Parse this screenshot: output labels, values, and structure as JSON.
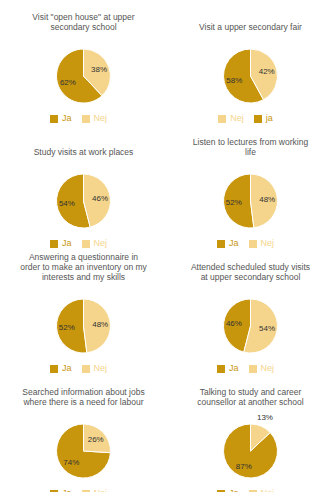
{
  "chart_data": [
    {
      "type": "pie",
      "title": "Visit \"open house\" at upper\nsecondary school",
      "categories": [
        "Ja",
        "Nej"
      ],
      "values": [
        62,
        38
      ],
      "value_labels": [
        "62%",
        "38%"
      ],
      "colors": [
        "#C8960C",
        "#F5D58C"
      ],
      "data_labels": true,
      "legend": "bottom"
    },
    {
      "type": "pie",
      "title": "Visit a upper secondary fair",
      "categories": [
        "ja",
        "Nej"
      ],
      "values": [
        58,
        42
      ],
      "value_labels": [
        "58%",
        "42%"
      ],
      "colors": [
        "#C8960C",
        "#F5D58C"
      ],
      "data_labels": true,
      "legend": "bottom"
    },
    {
      "type": "pie",
      "title": "Study visits at work places",
      "categories": [
        "Ja",
        "Nej"
      ],
      "values": [
        54,
        46
      ],
      "value_labels": [
        "54%",
        "46%"
      ],
      "colors": [
        "#C8960C",
        "#F5D58C"
      ],
      "data_labels": true,
      "legend": "bottom"
    },
    {
      "type": "pie",
      "title": "Listen to lectures from working\nlife",
      "categories": [
        "Ja",
        "Nej"
      ],
      "values": [
        52,
        48
      ],
      "value_labels": [
        "52%",
        "48%"
      ],
      "colors": [
        "#C8960C",
        "#F5D58C"
      ],
      "data_labels": true,
      "legend": "bottom"
    },
    {
      "type": "pie",
      "title": "Answering a questionnaire in\norder to make an inventory on my\ninterests and my skills",
      "categories": [
        "Ja",
        "Nej"
      ],
      "values": [
        52,
        48
      ],
      "value_labels": [
        "52%",
        "48%"
      ],
      "colors": [
        "#C8960C",
        "#F5D58C"
      ],
      "data_labels": true,
      "legend": "bottom"
    },
    {
      "type": "pie",
      "title": "Attended scheduled study visits\nat upper secondary school",
      "categories": [
        "Ja",
        "Nej"
      ],
      "values": [
        46,
        54
      ],
      "value_labels": [
        "46%",
        "54%"
      ],
      "colors": [
        "#C8960C",
        "#F5D58C"
      ],
      "data_labels": true,
      "legend": "bottom"
    },
    {
      "type": "pie",
      "title": "Searched information about jobs\nwhere there is a need for labour",
      "categories": [
        "Ja",
        "Nej"
      ],
      "values": [
        74,
        26
      ],
      "value_labels": [
        "74%",
        "26%"
      ],
      "colors": [
        "#C8960C",
        "#F5D58C"
      ],
      "data_labels": true,
      "legend": "bottom"
    },
    {
      "type": "pie",
      "title": "Talking to study and career\ncounsellor at another school",
      "categories": [
        "Ja",
        "Nej"
      ],
      "values": [
        87,
        13
      ],
      "value_labels": [
        "87%",
        "13%"
      ],
      "colors": [
        "#C8960C",
        "#F5D58C"
      ],
      "data_labels": true,
      "legend": "bottom"
    }
  ]
}
